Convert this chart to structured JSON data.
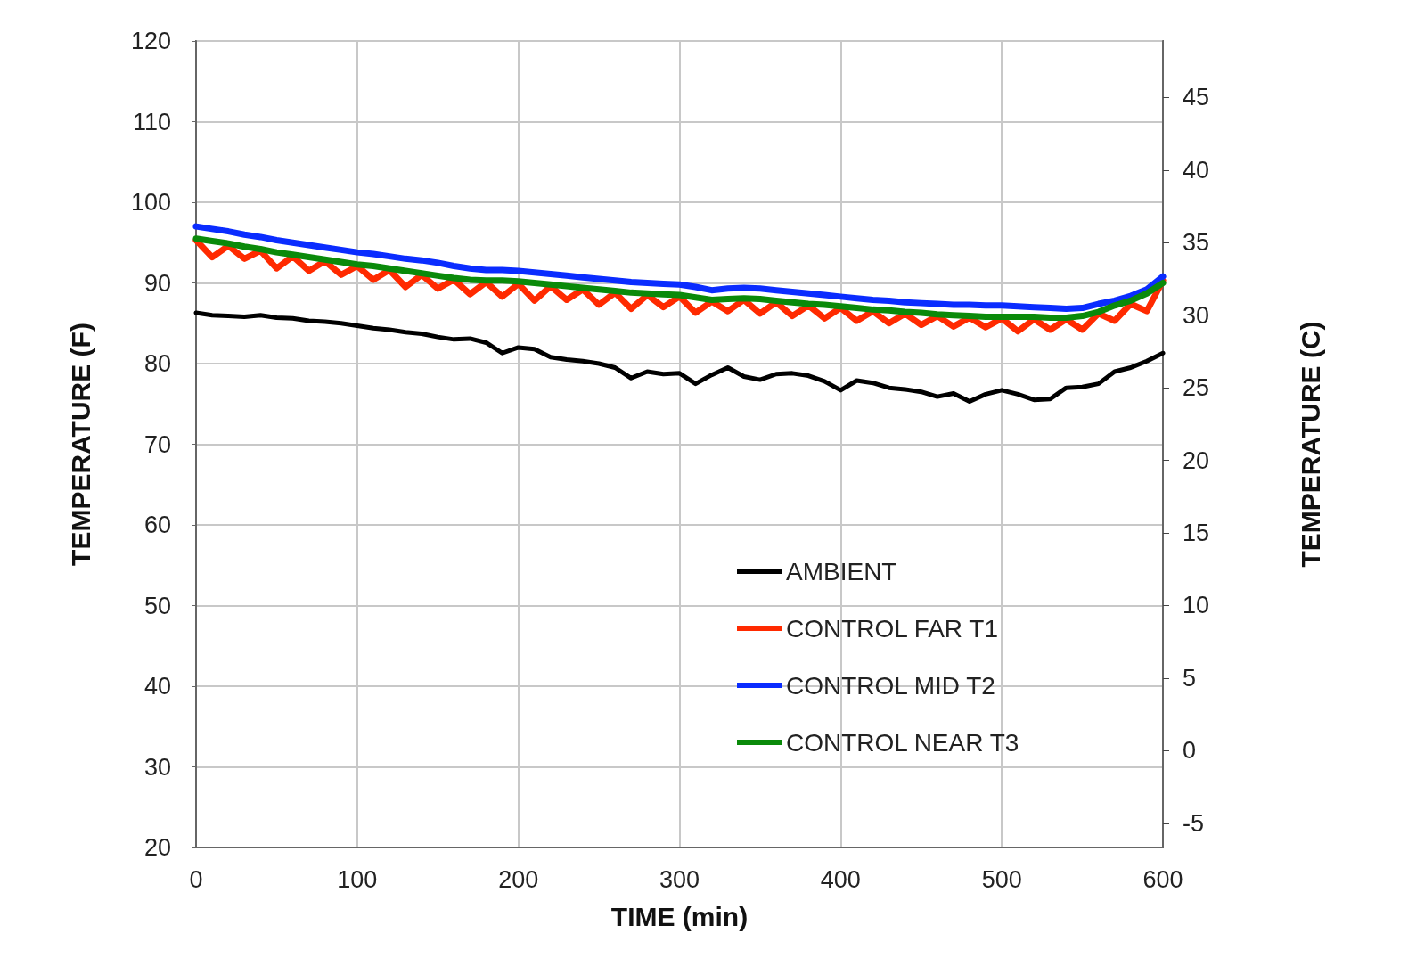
{
  "chart_data": {
    "type": "line",
    "xlabel": "TIME (min)",
    "ylabel": "TEMPERATURE (F)",
    "y2label": "TEMPERATURE (C)",
    "x": [
      0,
      10,
      20,
      30,
      40,
      50,
      60,
      70,
      80,
      90,
      100,
      110,
      120,
      130,
      140,
      150,
      160,
      170,
      180,
      190,
      200,
      210,
      220,
      230,
      240,
      250,
      260,
      270,
      280,
      290,
      300,
      310,
      320,
      330,
      340,
      350,
      360,
      370,
      380,
      390,
      400,
      410,
      420,
      430,
      440,
      450,
      460,
      470,
      480,
      490,
      500,
      510,
      520,
      530,
      540,
      550,
      560,
      570,
      580,
      590,
      600
    ],
    "xlim": [
      0,
      600
    ],
    "xticks": [
      0,
      100,
      200,
      300,
      400,
      500,
      600
    ],
    "ylim": [
      20,
      120
    ],
    "yticks": [
      20,
      30,
      40,
      50,
      60,
      70,
      80,
      90,
      100,
      110,
      120
    ],
    "y2lim": [
      -6.67,
      48.89
    ],
    "y2ticks": [
      -5,
      0,
      5,
      10,
      15,
      20,
      25,
      30,
      35,
      40,
      45
    ],
    "grid": true,
    "legend": "bottom right",
    "marker": "none",
    "line_style": "solid",
    "series": [
      {
        "name": "AMBIENT",
        "color": "#000000",
        "values": [
          86.3,
          86.0,
          85.9,
          85.8,
          86.0,
          85.7,
          85.6,
          85.3,
          85.2,
          85.0,
          84.7,
          84.4,
          84.2,
          83.9,
          83.7,
          83.3,
          83.0,
          83.1,
          82.6,
          81.3,
          82.0,
          81.8,
          80.8,
          80.5,
          80.3,
          80.0,
          79.5,
          78.2,
          79.0,
          78.7,
          78.8,
          77.5,
          78.6,
          79.5,
          78.4,
          78.0,
          78.7,
          78.8,
          78.5,
          77.8,
          76.7,
          77.9,
          77.6,
          77.0,
          76.8,
          76.5,
          75.9,
          76.3,
          75.3,
          76.2,
          76.7,
          76.2,
          75.5,
          75.6,
          77.0,
          77.1,
          77.5,
          79.0,
          79.5,
          80.3,
          81.3
        ]
      },
      {
        "name": "CONTROL FAR T1",
        "color": "#ff2a00",
        "values": [
          95.3,
          93.2,
          94.6,
          93.0,
          94.0,
          91.8,
          93.3,
          91.5,
          92.7,
          91.0,
          92.1,
          90.4,
          91.6,
          89.5,
          91.0,
          89.3,
          90.4,
          88.6,
          90.1,
          88.3,
          89.9,
          87.8,
          89.6,
          87.9,
          89.2,
          87.3,
          88.8,
          86.8,
          88.5,
          87.0,
          88.3,
          86.3,
          87.7,
          86.5,
          87.9,
          86.2,
          87.6,
          85.9,
          87.2,
          85.6,
          86.9,
          85.3,
          86.5,
          85.0,
          86.2,
          84.8,
          85.9,
          84.6,
          85.7,
          84.5,
          85.6,
          84.0,
          85.5,
          84.2,
          85.5,
          84.2,
          86.2,
          85.3,
          87.4,
          86.5,
          90.3
        ]
      },
      {
        "name": "CONTROL MID T2",
        "color": "#0a2cff",
        "values": [
          97.0,
          96.7,
          96.4,
          96.0,
          95.7,
          95.3,
          95.0,
          94.7,
          94.4,
          94.1,
          93.8,
          93.6,
          93.3,
          93.0,
          92.8,
          92.5,
          92.1,
          91.8,
          91.6,
          91.6,
          91.5,
          91.3,
          91.1,
          90.9,
          90.7,
          90.5,
          90.3,
          90.1,
          90.0,
          89.9,
          89.8,
          89.5,
          89.1,
          89.3,
          89.4,
          89.3,
          89.1,
          88.9,
          88.7,
          88.5,
          88.3,
          88.1,
          87.9,
          87.8,
          87.6,
          87.5,
          87.4,
          87.3,
          87.3,
          87.2,
          87.2,
          87.1,
          87.0,
          86.9,
          86.8,
          86.9,
          87.4,
          87.8,
          88.4,
          89.2,
          90.8
        ]
      },
      {
        "name": "CONTROL NEAR T3",
        "color": "#0a8a0a",
        "values": [
          95.5,
          95.2,
          94.9,
          94.5,
          94.2,
          93.8,
          93.5,
          93.2,
          92.9,
          92.6,
          92.3,
          92.1,
          91.8,
          91.5,
          91.2,
          90.9,
          90.6,
          90.4,
          90.3,
          90.3,
          90.2,
          90.0,
          89.8,
          89.6,
          89.4,
          89.2,
          89.0,
          88.8,
          88.7,
          88.6,
          88.5,
          88.2,
          87.9,
          88.0,
          88.1,
          88.0,
          87.8,
          87.6,
          87.4,
          87.3,
          87.1,
          86.9,
          86.7,
          86.6,
          86.4,
          86.3,
          86.1,
          86.0,
          85.9,
          85.8,
          85.8,
          85.8,
          85.8,
          85.7,
          85.7,
          85.9,
          86.4,
          87.2,
          87.8,
          88.7,
          90.0
        ]
      }
    ]
  }
}
